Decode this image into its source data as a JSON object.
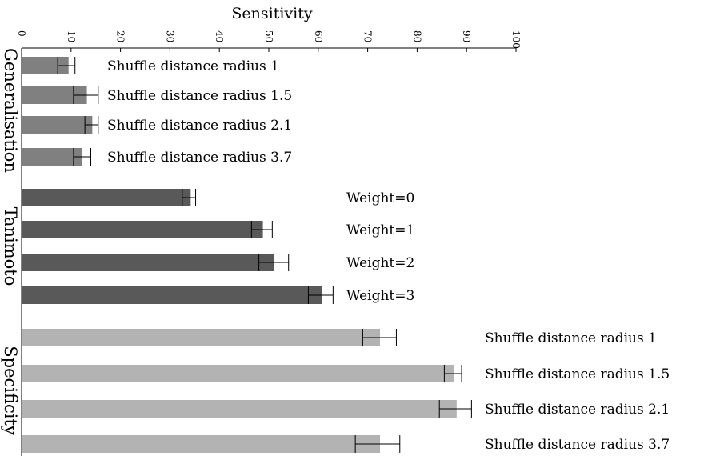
{
  "chart_data": {
    "type": "bar",
    "orientation": "horizontal",
    "title": "Sensitivity",
    "xlabel": "Sensitivity",
    "xlim": [
      0,
      100
    ],
    "x_ticks": [
      "0",
      "10",
      "20",
      "30",
      "40",
      "50",
      "60",
      "70",
      "80",
      "90",
      "100"
    ],
    "groups": [
      {
        "name": "Generalisation",
        "color": "#808080",
        "bars": [
          {
            "label": "Shuffle distance radius 1",
            "value": 9.5,
            "err_low": 7.3,
            "err_high": 10.8
          },
          {
            "label": "Shuffle distance radius 1.5",
            "value": 13.2,
            "err_low": 10.5,
            "err_high": 15.5
          },
          {
            "label": "Shuffle distance radius 2.1",
            "value": 14.3,
            "err_low": 12.8,
            "err_high": 15.5
          },
          {
            "label": "Shuffle distance radius 3.7",
            "value": 12.3,
            "err_low": 10.5,
            "err_high": 14.0
          }
        ]
      },
      {
        "name": "Tanimoto",
        "color": "#595959",
        "bars": [
          {
            "label": "Weight=0",
            "value": 34.2,
            "err_low": 32.5,
            "err_high": 35.2
          },
          {
            "label": "Weight=1",
            "value": 48.8,
            "err_low": 46.5,
            "err_high": 50.7
          },
          {
            "label": "Weight=2",
            "value": 51.0,
            "err_low": 48.0,
            "err_high": 54.0
          },
          {
            "label": "Weight=3",
            "value": 60.7,
            "err_low": 58.0,
            "err_high": 63.0
          }
        ]
      },
      {
        "name": "Specificity",
        "color": "#b3b3b3",
        "bars": [
          {
            "label": "Shuffle distance radius 1",
            "value": 72.5,
            "err_low": 69.0,
            "err_high": 75.8
          },
          {
            "label": "Shuffle distance radius 1.5",
            "value": 87.5,
            "err_low": 85.5,
            "err_high": 89.0
          },
          {
            "label": "Shuffle distance radius 2.1",
            "value": 88.0,
            "err_low": 84.5,
            "err_high": 91.0
          },
          {
            "label": "Shuffle distance radius 3.7",
            "value": 72.5,
            "err_low": 67.5,
            "err_high": 76.5
          }
        ]
      }
    ]
  }
}
